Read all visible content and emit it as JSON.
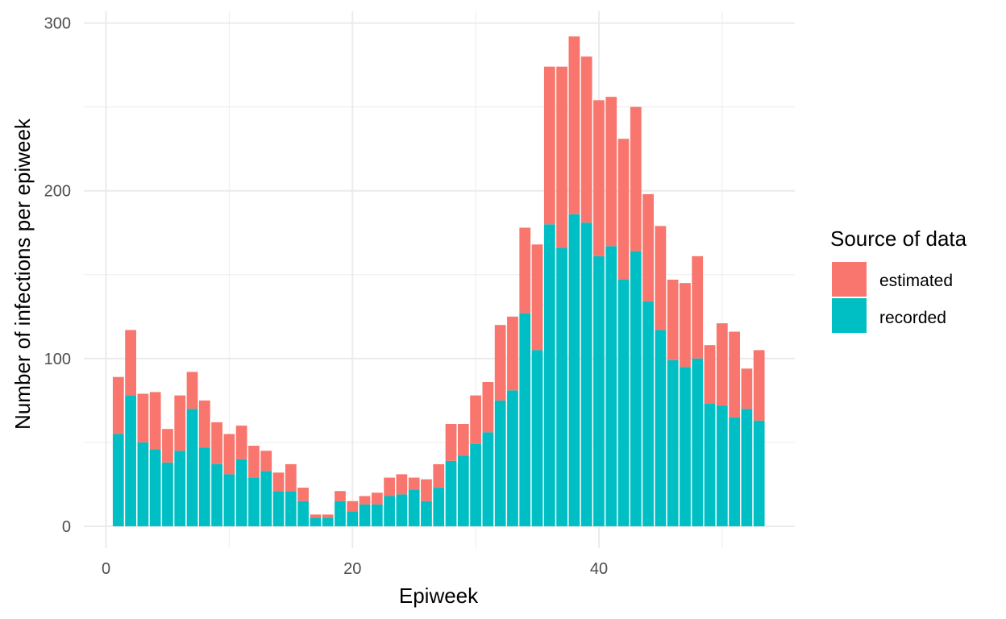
{
  "chart_data": {
    "type": "bar",
    "stacked": true,
    "xlabel": "Epiweek",
    "ylabel": "Number of infections per epiweek",
    "xlim": [
      -1.8,
      55.9
    ],
    "ylim": [
      -13,
      307
    ],
    "xticks": [
      0,
      20,
      40
    ],
    "yticks": [
      0,
      100,
      200,
      300
    ],
    "grid": true,
    "legend": {
      "title": "Source of data",
      "position": "right"
    },
    "x": [
      1,
      2,
      3,
      4,
      5,
      6,
      7,
      8,
      9,
      10,
      11,
      12,
      13,
      14,
      15,
      16,
      17,
      18,
      19,
      20,
      21,
      22,
      23,
      24,
      25,
      26,
      27,
      28,
      29,
      30,
      31,
      32,
      33,
      34,
      35,
      36,
      37,
      38,
      39,
      40,
      41,
      42,
      43,
      44,
      45,
      46,
      47,
      48,
      49,
      50,
      51,
      52,
      53
    ],
    "series": [
      {
        "name": "recorded",
        "color": "#00BFC4",
        "values": [
          55,
          78,
          50,
          46,
          38,
          45,
          70,
          47,
          37,
          31,
          40,
          29,
          33,
          21,
          21,
          15,
          5,
          5,
          15,
          9,
          13,
          13,
          18,
          19,
          22,
          15,
          23,
          39,
          42,
          49,
          56,
          75,
          81,
          127,
          105,
          180,
          166,
          186,
          181,
          161,
          167,
          147,
          164,
          134,
          117,
          99,
          95,
          100,
          73,
          72,
          65,
          70,
          63
        ]
      },
      {
        "name": "estimated",
        "color": "#F8766D",
        "values": [
          34,
          39,
          29,
          34,
          20,
          33,
          22,
          28,
          25,
          24,
          20,
          19,
          12,
          11,
          16,
          8,
          2,
          2,
          6,
          6,
          5,
          7,
          11,
          12,
          7,
          13,
          14,
          22,
          19,
          29,
          30,
          45,
          44,
          51,
          63,
          94,
          108,
          106,
          99,
          93,
          89,
          84,
          86,
          64,
          62,
          48,
          50,
          61,
          35,
          49,
          51,
          24,
          42
        ]
      }
    ]
  }
}
